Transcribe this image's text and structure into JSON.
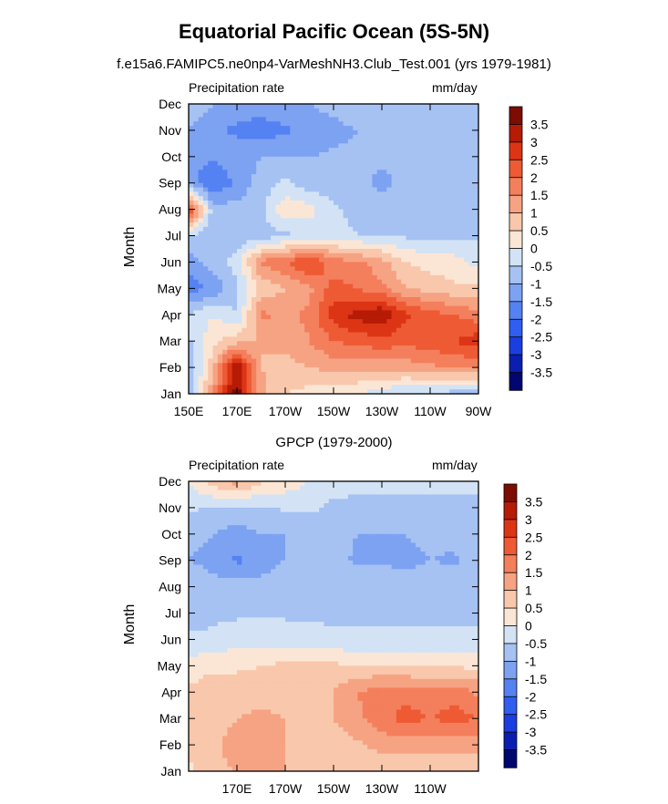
{
  "title": "Equatorial Pacific Ocean (5S-5N)",
  "subtitle": "f.e15a6.FAMIPC5.ne0np4-VarMeshNH3.Club_Test.001 (yrs 1979-1981)",
  "colorbar": {
    "levels": [
      -3.5,
      -3,
      -2.5,
      -2,
      -1.5,
      -1,
      -0.5,
      0,
      0.5,
      1,
      1.5,
      2,
      2.5,
      3,
      3.5
    ],
    "labels": [
      "3.5",
      "3",
      "2.5",
      "2",
      "1.5",
      "1",
      "0.5",
      "0",
      "-0.5",
      "-1",
      "-1.5",
      "-2",
      "-2.5",
      "-3",
      "-3.5"
    ],
    "colors": [
      "#02066f",
      "#0a1fb0",
      "#1a3ee0",
      "#2f5ef0",
      "#5582f2",
      "#7da2f2",
      "#a6c2f3",
      "#d3e3f5",
      "#fbe6d5",
      "#f9c7ac",
      "#f6a383",
      "#f47f5c",
      "#ee5a34",
      "#dc3515",
      "#b61b06",
      "#7d0c02"
    ]
  },
  "chart_data": [
    {
      "type": "heatmap",
      "title": "",
      "left_label": "Precipitation rate",
      "right_label": "mm/day",
      "xlabel": "",
      "ylabel": "Month",
      "xlim": [
        150,
        270
      ],
      "x_tick_values": [
        150,
        170,
        190,
        210,
        230,
        250,
        270
      ],
      "x_tick_labels": [
        "150E",
        "170E",
        "170W",
        "150W",
        "130W",
        "110W",
        "90W"
      ],
      "months": [
        "Jan",
        "Feb",
        "Mar",
        "Apr",
        "May",
        "Jun",
        "Jul",
        "Aug",
        "Sep",
        "Oct",
        "Nov",
        "Dec"
      ],
      "lons": [
        150,
        160,
        170,
        180,
        190,
        200,
        210,
        220,
        230,
        240,
        250,
        260,
        270
      ],
      "values": [
        [
          -1.0,
          1.5,
          3.8,
          1.2,
          0.5,
          0.3,
          0.2,
          0.0,
          -0.3,
          -0.5,
          -0.6,
          -0.7,
          -0.8
        ],
        [
          -1.0,
          0.8,
          3.5,
          1.0,
          0.8,
          1.0,
          1.2,
          1.2,
          1.2,
          1.2,
          1.4,
          1.5,
          1.6
        ],
        [
          -0.6,
          0.4,
          0.8,
          1.0,
          1.2,
          1.5,
          2.0,
          2.2,
          2.3,
          2.2,
          2.3,
          2.5,
          2.8
        ],
        [
          -0.5,
          0.0,
          -0.5,
          1.6,
          1.4,
          1.6,
          2.8,
          3.2,
          3.5,
          2.6,
          2.2,
          2.0,
          1.7
        ],
        [
          -1.8,
          -1.4,
          -0.6,
          0.6,
          1.0,
          1.4,
          2.2,
          2.0,
          1.6,
          1.0,
          0.8,
          0.6,
          0.6
        ],
        [
          -1.2,
          -0.8,
          -0.3,
          1.6,
          2.0,
          2.6,
          1.7,
          1.6,
          1.2,
          0.5,
          0.3,
          0.2,
          -0.2
        ],
        [
          -0.6,
          -0.8,
          -0.8,
          -0.8,
          -0.6,
          -0.4,
          -0.3,
          -0.5,
          -0.5,
          -0.6,
          -0.6,
          -0.6,
          -0.6
        ],
        [
          2.6,
          -0.8,
          -0.8,
          -0.6,
          0.4,
          0.2,
          -0.4,
          -0.7,
          -0.6,
          -0.8,
          -0.6,
          -0.6,
          -0.6
        ],
        [
          -1.2,
          -2.0,
          -1.4,
          -0.8,
          -0.4,
          -0.8,
          -0.9,
          -0.8,
          -1.2,
          -0.8,
          -0.6,
          -0.6,
          -0.6
        ],
        [
          -1.4,
          -1.4,
          -1.2,
          -1.0,
          -1.0,
          -1.0,
          -0.9,
          -0.9,
          -0.8,
          -0.8,
          -0.7,
          -0.6,
          -0.6
        ],
        [
          -1.0,
          -1.4,
          -1.6,
          -1.8,
          -1.6,
          -1.4,
          -1.2,
          -1.0,
          -0.8,
          -0.8,
          -0.6,
          -0.6,
          -0.6
        ],
        [
          -0.6,
          -1.0,
          -1.2,
          -1.2,
          -1.0,
          -1.0,
          -0.8,
          -0.6,
          -0.6,
          -0.6,
          -0.6,
          -0.6,
          -0.6
        ]
      ]
    },
    {
      "type": "heatmap",
      "title": "GPCP (1979-2000)",
      "left_label": "Precipitation rate",
      "right_label": "mm/day",
      "xlabel": "",
      "ylabel": "Month",
      "xlim": [
        150,
        270
      ],
      "x_tick_values": [
        170,
        190,
        210,
        230,
        250
      ],
      "x_tick_labels": [
        "170E",
        "170W",
        "150W",
        "130W",
        "110W"
      ],
      "months": [
        "Jan",
        "Feb",
        "Mar",
        "Apr",
        "May",
        "Jun",
        "Jul",
        "Aug",
        "Sep",
        "Oct",
        "Nov",
        "Dec"
      ],
      "lons": [
        150,
        160,
        170,
        180,
        190,
        200,
        210,
        220,
        230,
        240,
        250,
        260,
        270
      ],
      "values": [
        [
          0.4,
          0.9,
          1.0,
          1.5,
          1.0,
          0.6,
          0.6,
          0.6,
          0.6,
          0.6,
          0.6,
          0.6,
          0.6
        ],
        [
          0.6,
          0.9,
          1.2,
          1.4,
          1.0,
          0.8,
          0.8,
          0.9,
          1.2,
          1.2,
          1.2,
          1.2,
          1.2
        ],
        [
          0.6,
          0.8,
          1.0,
          1.1,
          1.0,
          1.0,
          1.0,
          1.4,
          1.8,
          2.2,
          2.0,
          2.2,
          2.0
        ],
        [
          0.6,
          0.8,
          0.8,
          0.8,
          0.8,
          0.9,
          1.0,
          1.5,
          1.8,
          1.8,
          1.6,
          1.8,
          1.4
        ],
        [
          0.2,
          0.4,
          0.4,
          0.5,
          0.6,
          0.6,
          0.6,
          0.5,
          0.5,
          0.5,
          0.4,
          0.4,
          0.4
        ],
        [
          -0.4,
          -0.4,
          -0.2,
          -0.2,
          -0.2,
          -0.3,
          -0.4,
          -0.4,
          -0.4,
          -0.4,
          -0.4,
          -0.4,
          -0.4
        ],
        [
          -0.8,
          -0.6,
          -0.6,
          -0.6,
          -0.6,
          -0.6,
          -0.6,
          -0.6,
          -0.6,
          -0.6,
          -0.6,
          -0.6,
          -0.6
        ],
        [
          -0.6,
          -0.8,
          -0.8,
          -0.8,
          -0.6,
          -0.6,
          -0.6,
          -0.6,
          -0.6,
          -0.6,
          -0.6,
          -0.6,
          -0.6
        ],
        [
          -1.0,
          -1.2,
          -1.6,
          -1.3,
          -1.0,
          -1.0,
          -0.8,
          -1.1,
          -1.1,
          -1.2,
          -1.0,
          -1.1,
          -0.6
        ],
        [
          -0.8,
          -1.0,
          -1.2,
          -1.0,
          -1.0,
          -0.8,
          -0.8,
          -1.0,
          -1.0,
          -1.0,
          -0.8,
          -0.8,
          -0.8
        ],
        [
          -0.4,
          -0.6,
          -0.6,
          -0.6,
          -0.4,
          -0.4,
          -0.6,
          -0.6,
          -0.6,
          -0.6,
          -0.6,
          -0.6,
          -0.6
        ],
        [
          0.0,
          0.8,
          1.2,
          0.6,
          0.3,
          0.0,
          -0.3,
          -0.4,
          -0.4,
          -0.4,
          -0.4,
          -0.4,
          -0.4
        ]
      ]
    }
  ]
}
